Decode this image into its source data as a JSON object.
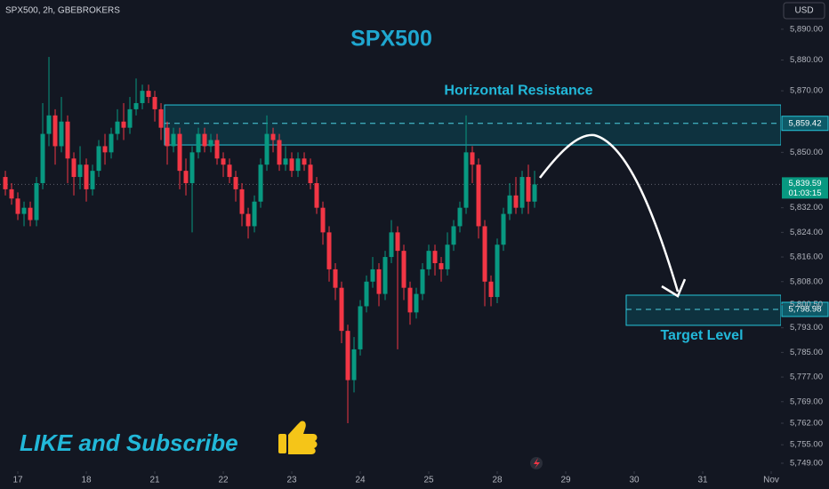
{
  "chart_data": {
    "type": "candlestick",
    "header": "SPX500, 2h, GBEBROKERS",
    "currency": "USD",
    "title": "SPX500",
    "banner": "LIKE and Subscribe",
    "up_color": "#089981",
    "down_color": "#f23645",
    "x": [
      -2,
      -1,
      0,
      1,
      2,
      3,
      4,
      5,
      6,
      7,
      8,
      9,
      10,
      11,
      12,
      13,
      14,
      15,
      16,
      17,
      18,
      19,
      20,
      21,
      22,
      23,
      24,
      25,
      26,
      27,
      28,
      29,
      30,
      31,
      32,
      33,
      34,
      35,
      36,
      37,
      38,
      39,
      40,
      41,
      42,
      43,
      44,
      45,
      46,
      47,
      48,
      49,
      50,
      51,
      52,
      53,
      54,
      55,
      56,
      57,
      58,
      59,
      60,
      61,
      62,
      63,
      64,
      65,
      66,
      67,
      68,
      69,
      70,
      71,
      72,
      73,
      74,
      75,
      76,
      77,
      78,
      79,
      80,
      81,
      82,
      83
    ],
    "open": [
      5842,
      5838,
      5835,
      5830,
      5832,
      5828,
      5840,
      5856,
      5862,
      5852,
      5860,
      5848,
      5842,
      5846,
      5838,
      5844,
      5852,
      5850,
      5856,
      5860,
      5858,
      5864,
      5866,
      5870,
      5868,
      5864,
      5858,
      5852,
      5856,
      5844,
      5840,
      5850,
      5856,
      5852,
      5854,
      5848,
      5846,
      5842,
      5838,
      5830,
      5826,
      5834,
      5846,
      5856,
      5854,
      5846,
      5848,
      5844,
      5848,
      5846,
      5840,
      5832,
      5824,
      5812,
      5806,
      5792,
      5776,
      5786,
      5800,
      5808,
      5812,
      5804,
      5816,
      5824,
      5818,
      5806,
      5798,
      5804,
      5812,
      5818,
      5814,
      5812,
      5820,
      5826,
      5832,
      5850,
      5846,
      5826,
      5808,
      5803,
      5820,
      5830,
      5836,
      5832,
      5842,
      5834
    ],
    "high": [
      5844,
      5840,
      5837,
      5834,
      5834,
      5842,
      5866,
      5881,
      5864,
      5868,
      5862,
      5850,
      5852,
      5848,
      5846,
      5854,
      5856,
      5858,
      5864,
      5866,
      5868,
      5874,
      5872,
      5872,
      5870,
      5866,
      5860,
      5858,
      5858,
      5848,
      5852,
      5858,
      5858,
      5856,
      5856,
      5850,
      5848,
      5844,
      5840,
      5832,
      5836,
      5848,
      5862,
      5858,
      5856,
      5852,
      5850,
      5850,
      5850,
      5848,
      5842,
      5834,
      5826,
      5814,
      5808,
      5794,
      5790,
      5802,
      5810,
      5816,
      5814,
      5818,
      5828,
      5826,
      5820,
      5808,
      5806,
      5814,
      5820,
      5820,
      5816,
      5824,
      5828,
      5834,
      5862,
      5852,
      5848,
      5828,
      5810,
      5822,
      5832,
      5840,
      5842,
      5844,
      5846,
      5844
    ],
    "low": [
      5836,
      5833,
      5828,
      5826,
      5826,
      5826,
      5838,
      5852,
      5846,
      5850,
      5840,
      5836,
      5838,
      5834,
      5836,
      5842,
      5846,
      5848,
      5854,
      5854,
      5856,
      5862,
      5864,
      5866,
      5860,
      5854,
      5846,
      5850,
      5838,
      5836,
      5824,
      5848,
      5850,
      5850,
      5846,
      5842,
      5840,
      5834,
      5826,
      5822,
      5824,
      5832,
      5844,
      5850,
      5844,
      5844,
      5842,
      5842,
      5844,
      5838,
      5830,
      5820,
      5808,
      5802,
      5788,
      5762,
      5772,
      5784,
      5798,
      5806,
      5800,
      5802,
      5814,
      5786,
      5802,
      5794,
      5796,
      5802,
      5810,
      5810,
      5808,
      5810,
      5818,
      5824,
      5830,
      5840,
      5822,
      5800,
      5800,
      5801,
      5818,
      5828,
      5830,
      5830,
      5830,
      5832
    ],
    "close": [
      5838,
      5835,
      5830,
      5832,
      5828,
      5840,
      5856,
      5862,
      5852,
      5860,
      5848,
      5842,
      5846,
      5838,
      5844,
      5852,
      5850,
      5856,
      5860,
      5858,
      5864,
      5866,
      5870,
      5868,
      5864,
      5858,
      5852,
      5856,
      5844,
      5840,
      5850,
      5856,
      5852,
      5854,
      5848,
      5846,
      5842,
      5838,
      5830,
      5826,
      5834,
      5846,
      5856,
      5854,
      5846,
      5848,
      5844,
      5848,
      5846,
      5840,
      5832,
      5824,
      5812,
      5806,
      5792,
      5776,
      5786,
      5800,
      5808,
      5812,
      5804,
      5816,
      5824,
      5818,
      5806,
      5798,
      5804,
      5812,
      5818,
      5814,
      5812,
      5820,
      5826,
      5832,
      5850,
      5846,
      5826,
      5808,
      5803,
      5820,
      5830,
      5836,
      5832,
      5842,
      5834,
      5839.59
    ],
    "xlim": [
      -2.86,
      122.57
    ],
    "xticks": [
      {
        "value": 0,
        "label": "17"
      },
      {
        "value": 11,
        "label": "18"
      },
      {
        "value": 22,
        "label": "21"
      },
      {
        "value": 33,
        "label": "22"
      },
      {
        "value": 44,
        "label": "23"
      },
      {
        "value": 55,
        "label": "24"
      },
      {
        "value": 66,
        "label": "25"
      },
      {
        "value": 77,
        "label": "28"
      },
      {
        "value": 88,
        "label": "29"
      },
      {
        "value": 99,
        "label": "30"
      },
      {
        "value": 110,
        "label": "31"
      },
      {
        "value": 121,
        "label": "Nov"
      }
    ],
    "ylim": [
      5746.4,
      5899.5
    ],
    "yticks": [
      {
        "value": 5890,
        "label": "5,890.00"
      },
      {
        "value": 5880,
        "label": "5,880.00"
      },
      {
        "value": 5870,
        "label": "5,870.00"
      },
      {
        "value": 5850,
        "label": "5,850.00"
      },
      {
        "value": 5832,
        "label": "5,832.00"
      },
      {
        "value": 5824,
        "label": "5,824.00"
      },
      {
        "value": 5816,
        "label": "5,816.00"
      },
      {
        "value": 5808,
        "label": "5,808.00"
      },
      {
        "value": 5800.5,
        "label": "5,800.50"
      },
      {
        "value": 5793,
        "label": "5,793.00"
      },
      {
        "value": 5785,
        "label": "5,785.00"
      },
      {
        "value": 5777,
        "label": "5,777.00"
      },
      {
        "value": 5769,
        "label": "5,769.00"
      },
      {
        "value": 5762,
        "label": "5,762.00"
      },
      {
        "value": 5755,
        "label": "5,755.00"
      },
      {
        "value": 5749,
        "label": "5,749.00"
      }
    ],
    "current_price": {
      "value": 5839.59,
      "label": "5,839.59",
      "countdown": "01:03:15"
    },
    "zones": [
      {
        "name": "Horizontal Resistance",
        "low": 5852.4,
        "high": 5865.4,
        "x_from": 23.57,
        "line": {
          "value": 5859.42,
          "label": "5,859.42"
        }
      },
      {
        "name": "Target Level",
        "low": 5793.8,
        "high": 5803.6,
        "x_from": 97.71,
        "line": {
          "value": 5798.98,
          "label": "5,798.98"
        }
      }
    ]
  }
}
